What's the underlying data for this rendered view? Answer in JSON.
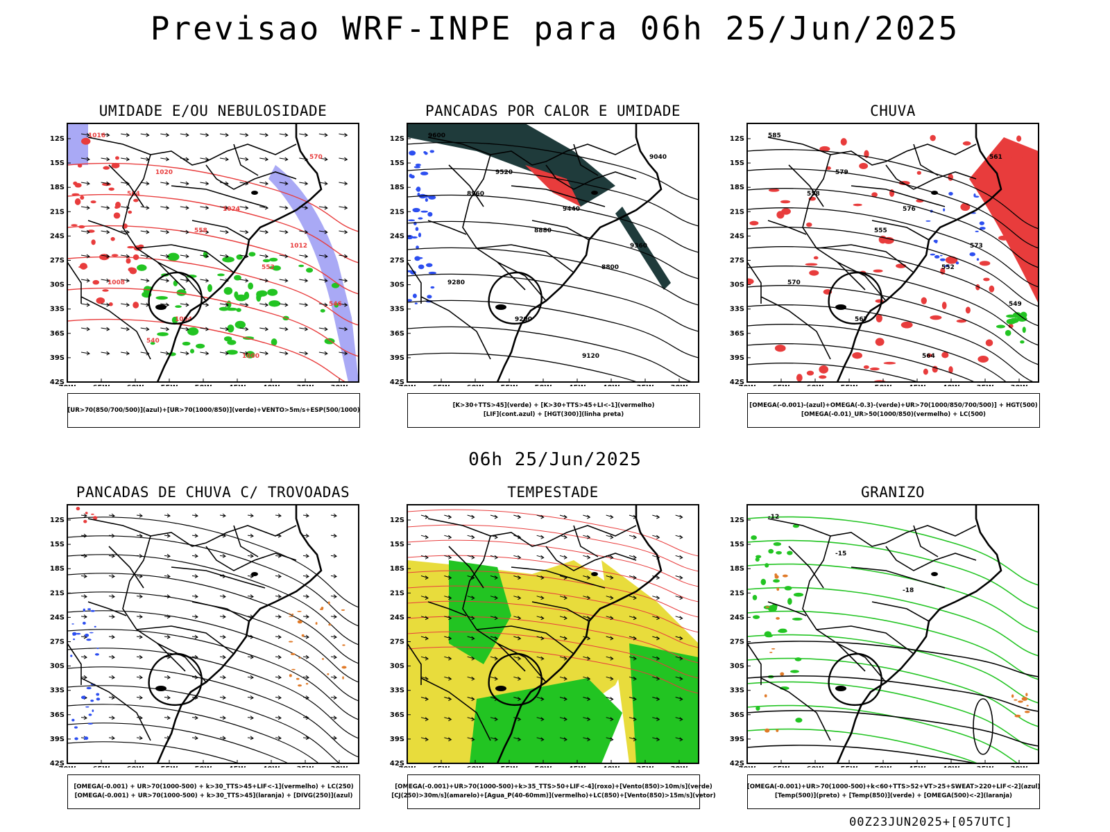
{
  "header": {
    "title": "Previsao WRF-INPE  para 06h 25/Jun/2025"
  },
  "mid_title": "06h 25/Jun/2025",
  "footer": "00Z23JUN2025+[057UTC]",
  "axes": {
    "lat_labels": [
      "12S",
      "15S",
      "18S",
      "21S",
      "24S",
      "27S",
      "30S",
      "33S",
      "36S",
      "39S",
      "42S"
    ],
    "lon_labels": [
      "70W",
      "65W",
      "60W",
      "55W",
      "50W",
      "45W",
      "40W",
      "35W",
      "30W"
    ]
  },
  "panels": [
    {
      "title": "UMIDADE E/OU NEBULOSIDADE",
      "legend": [
        "[UR>70(850/700/500)](azul)+[UR>70(1000/850)](verde)+VENTO>5m/s+ESP(500/1000)"
      ],
      "contour_labels": [
        "1016",
        "1020",
        "1024",
        "1012",
        "1008",
        "1004",
        "1000",
        "570",
        "564",
        "558",
        "552",
        "546",
        "540"
      ]
    },
    {
      "title": "PANCADAS POR CALOR E UMIDADE",
      "legend": [
        "[K>30+TTS>45](verde) + [K>30+TTS>45+LI<-1](vermelho)",
        "[LIF](cont.azul) + [HGT(300)](linha preta)"
      ],
      "contour_labels": [
        "9600",
        "9520",
        "9440",
        "9360",
        "9280",
        "9200",
        "9120",
        "9040",
        "8960",
        "8880",
        "8800"
      ]
    },
    {
      "title": "CHUVA",
      "legend": [
        "[OMEGA(-0.001)-(azul)+OMEGA(-0.3)-(verde)+UR>70(1000/850/700/500)] + HGT(500)",
        "[OMEGA(-0.01)_UR>50(1000/850)(vermelho) + LC(500)"
      ],
      "contour_labels": [
        "585",
        "579",
        "576",
        "573",
        "570",
        "567",
        "564",
        "561",
        "558",
        "555",
        "552",
        "549"
      ]
    },
    {
      "title": "PANCADAS DE CHUVA C/ TROVOADAS",
      "legend": [
        "[OMEGA(-0.001) + UR>70(1000-500) + k>30_TTS>45+LIF<-1](vermelho) + LC(250)",
        "[OMEGA(-0.001) + UR>70(1000-500) + k>30_TTS>45](laranja) + [DIVG(250)](azul)"
      ],
      "contour_labels": []
    },
    {
      "title": "TEMPESTADE",
      "legend": [
        "[OMEGA(-0.001)+UR>70(1000-500)+k>35_TTS>50+LIF<-4](roxo)+[Vento(850)>10m/s](verde)",
        "[CJ(250)>30m/s](amarelo)+[Agua_P(40-60mm)](vermelho)+LC(850)+[Vento(850)>15m/s](vetor)"
      ],
      "contour_labels": []
    },
    {
      "title": "GRANIZO",
      "legend": [
        "[OMEGA(-0.001)+UR>70(1000-500)+k<60+TTS>52+VT>25+SWEAT>220+LIF<-2](azul)",
        "[Temp(500)](preto) + [Temp(850)](verde) + [OMEGA(500)<-2](laranja)"
      ],
      "contour_labels": [
        "-12",
        "-15",
        "-18"
      ]
    }
  ],
  "colors": {
    "red": "#e83c3c",
    "green": "#22c422",
    "blue": "#2c4ef0",
    "lavender": "#a9a9f5",
    "dark_teal": "#1f3b3b",
    "yellow": "#e8dc3c",
    "orange": "#e07a28",
    "black": "#000000"
  }
}
